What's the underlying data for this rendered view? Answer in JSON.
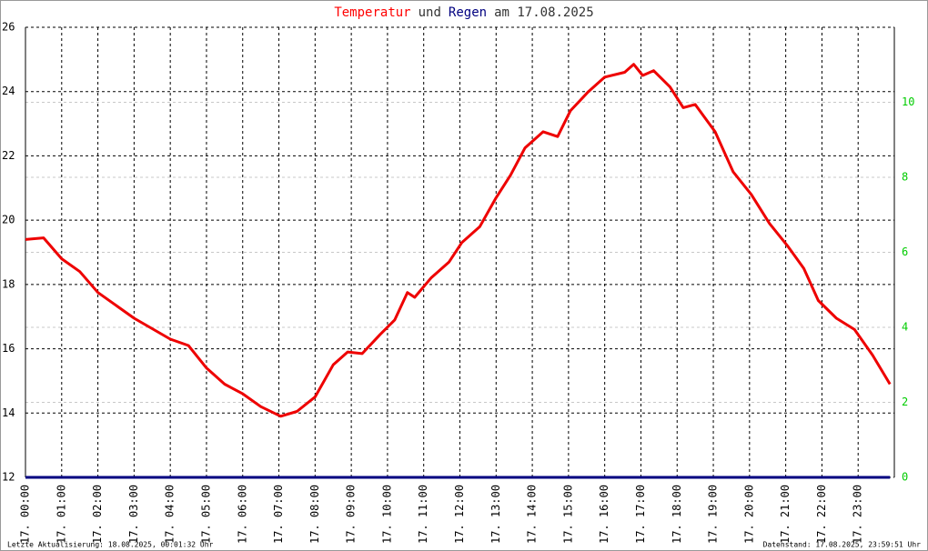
{
  "chart_data": {
    "type": "line",
    "title_parts": [
      {
        "text": "Temperatur",
        "color": "#ff0000"
      },
      {
        "text": "und",
        "color": "#333333"
      },
      {
        "text": "Regen",
        "color": "#000080"
      },
      {
        "text": "am 17.08.2025",
        "color": "#333333"
      }
    ],
    "footer_left": "Letzte Aktualisierung: 18.08.2025, 00:01:32 Uhr",
    "footer_right": "Datenstand: 17.08.2025, 23:59:51 Uhr",
    "xlim": [
      0,
      24
    ],
    "xticks": [
      {
        "value": 0,
        "label": "17. 00:00"
      },
      {
        "value": 1,
        "label": "17. 01:00"
      },
      {
        "value": 2,
        "label": "17. 02:00"
      },
      {
        "value": 3,
        "label": "17. 03:00"
      },
      {
        "value": 4,
        "label": "17. 04:00"
      },
      {
        "value": 5,
        "label": "17. 05:00"
      },
      {
        "value": 6,
        "label": "17. 06:00"
      },
      {
        "value": 7,
        "label": "17. 07:00"
      },
      {
        "value": 8,
        "label": "17. 08:00"
      },
      {
        "value": 9,
        "label": "17. 09:00"
      },
      {
        "value": 10,
        "label": "17. 10:00"
      },
      {
        "value": 11,
        "label": "17. 11:00"
      },
      {
        "value": 12,
        "label": "17. 12:00"
      },
      {
        "value": 13,
        "label": "17. 13:00"
      },
      {
        "value": 14,
        "label": "17. 14:00"
      },
      {
        "value": 15,
        "label": "17. 15:00"
      },
      {
        "value": 16,
        "label": "17. 16:00"
      },
      {
        "value": 17,
        "label": "17. 17:00"
      },
      {
        "value": 18,
        "label": "17. 18:00"
      },
      {
        "value": 19,
        "label": "17. 19:00"
      },
      {
        "value": 20,
        "label": "17. 20:00"
      },
      {
        "value": 21,
        "label": "17. 21:00"
      },
      {
        "value": 22,
        "label": "17. 22:00"
      },
      {
        "value": 23,
        "label": "17. 23:00"
      }
    ],
    "ylim": [
      12,
      26
    ],
    "yticks": [
      12,
      14,
      16,
      18,
      20,
      22,
      24,
      26
    ],
    "y2lim": [
      0,
      12
    ],
    "y2ticks": [
      0,
      2,
      4,
      6,
      8,
      10
    ],
    "y2_color": "#00cc00",
    "grid": true,
    "x": [
      0,
      0.5,
      1,
      1.5,
      2,
      3,
      4,
      4.5,
      5,
      5.5,
      6,
      6.5,
      7.05,
      7.5,
      8,
      8.5,
      8.9,
      9.3,
      9.8,
      10.2,
      10.55,
      10.75,
      11.2,
      11.7,
      12.05,
      12.55,
      13,
      13.4,
      13.8,
      14.3,
      14.7,
      15.05,
      15.55,
      16,
      16.55,
      16.8,
      17.05,
      17.35,
      17.8,
      18.17,
      18.5,
      19.05,
      19.55,
      20.05,
      20.55,
      21.05,
      21.5,
      21.9,
      22.4,
      22.9,
      23.4,
      23.88
    ],
    "series": [
      {
        "name": "Temperatur",
        "color": "#ee0000",
        "values": [
          19.4,
          19.45,
          18.8,
          18.4,
          17.75,
          16.95,
          16.3,
          16.1,
          15.4,
          14.9,
          14.6,
          14.2,
          13.9,
          14.05,
          14.5,
          15.5,
          15.9,
          15.85,
          16.45,
          16.9,
          17.75,
          17.6,
          18.2,
          18.7,
          19.3,
          19.8,
          20.7,
          21.4,
          22.25,
          22.75,
          22.6,
          23.4,
          24.0,
          24.45,
          24.6,
          24.85,
          24.5,
          24.65,
          24.15,
          23.5,
          23.6,
          22.75,
          21.5,
          20.8,
          19.9,
          19.2,
          18.5,
          17.5,
          16.95,
          16.6,
          15.8,
          14.9
        ]
      },
      {
        "name": "Regen",
        "color": "#000080",
        "axis": "y2",
        "values": [
          0,
          0,
          0,
          0,
          0,
          0,
          0,
          0,
          0,
          0,
          0,
          0,
          0,
          0,
          0,
          0,
          0,
          0,
          0,
          0,
          0,
          0,
          0,
          0,
          0,
          0,
          0,
          0,
          0,
          0,
          0,
          0,
          0,
          0,
          0,
          0,
          0,
          0,
          0,
          0,
          0,
          0,
          0,
          0,
          0,
          0,
          0,
          0,
          0,
          0,
          0,
          0
        ]
      }
    ]
  }
}
